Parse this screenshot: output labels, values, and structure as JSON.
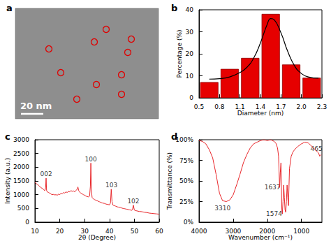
{
  "image_panel": {
    "title": "a",
    "scale_bar": "20 nm"
  },
  "chart_data": [
    {
      "type": "histogram",
      "title": "b",
      "bins": [
        0.5,
        0.8,
        1.1,
        1.4,
        1.7,
        2.0,
        2.3
      ],
      "values": [
        7,
        13,
        18,
        38,
        15,
        9
      ],
      "color": "#e60000",
      "fit": {
        "x": [
          0.65,
          0.8,
          0.95,
          1.1,
          1.2,
          1.3,
          1.4,
          1.5,
          1.55,
          1.6,
          1.7,
          1.8,
          1.9,
          2.0,
          2.1,
          2.25
        ],
        "values": [
          8.5,
          8.7,
          9.5,
          11.5,
          13.8,
          18,
          25,
          33.5,
          36,
          35.5,
          29.5,
          21,
          14.5,
          11,
          9.5,
          8.9
        ],
        "color": "#000000"
      },
      "xlabel": "Diameter (nm)",
      "ylabel": "Percentage (%)",
      "xlim": [
        0.5,
        2.3
      ],
      "xticks": [
        0.5,
        0.8,
        1.1,
        1.4,
        1.7,
        {
          "value": 2,
          "label": "2.0"
        },
        2.3
      ],
      "ylim": [
        0,
        40
      ],
      "yticks": [
        0,
        10,
        20,
        30,
        40
      ],
      "grid": false
    },
    {
      "type": "line",
      "title": "c",
      "x": [
        10,
        10.5,
        11,
        11.5,
        12,
        12.5,
        13,
        13.5,
        14,
        14.3,
        14.5,
        14.7,
        15,
        15.5,
        16,
        16.5,
        17,
        17.5,
        18,
        18.5,
        19,
        19.5,
        20,
        20.5,
        21,
        21.5,
        22,
        22.5,
        23,
        23.5,
        24,
        24.5,
        25,
        25.5,
        26,
        26.5,
        27,
        27.3,
        27.6,
        28,
        28.5,
        29,
        29.5,
        30,
        30.5,
        31,
        31.5,
        32,
        32.3,
        32.5,
        32.7,
        33,
        33.5,
        34,
        34.5,
        35,
        35.5,
        36,
        36.5,
        37,
        37.5,
        38,
        38.5,
        39,
        39.5,
        40,
        40.4,
        40.7,
        41,
        41.4,
        42,
        42.5,
        43,
        43.5,
        44,
        44.5,
        45,
        45.5,
        46,
        46.5,
        47,
        47.5,
        48,
        48.5,
        49,
        49.3,
        49.6,
        50,
        50.5,
        51,
        52,
        53,
        54,
        55,
        56,
        57,
        58,
        59,
        60
      ],
      "values": [
        1450,
        1400,
        1380,
        1330,
        1300,
        1250,
        1230,
        1180,
        1150,
        1250,
        1600,
        1150,
        1100,
        1080,
        1050,
        1020,
        1000,
        1010,
        990,
        1000,
        980,
        1020,
        1000,
        1050,
        1030,
        1080,
        1060,
        1100,
        1080,
        1120,
        1100,
        1150,
        1120,
        1140,
        1100,
        1150,
        1200,
        1280,
        1150,
        1100,
        1050,
        1030,
        1000,
        980,
        950,
        930,
        920,
        950,
        1300,
        2150,
        1200,
        900,
        850,
        820,
        800,
        780,
        760,
        740,
        720,
        700,
        690,
        680,
        660,
        650,
        640,
        630,
        700,
        1200,
        750,
        620,
        600,
        580,
        560,
        550,
        540,
        530,
        510,
        500,
        490,
        480,
        470,
        460,
        450,
        440,
        430,
        480,
        620,
        440,
        420,
        410,
        390,
        380,
        360,
        350,
        330,
        320,
        310,
        300,
        290
      ],
      "color": "#e8262a",
      "annotations": [
        {
          "text": "002",
          "x": 14.5,
          "y": 1750
        },
        {
          "text": "100",
          "x": 32.5,
          "y": 2300
        },
        {
          "text": "103",
          "x": 40.8,
          "y": 1350
        },
        {
          "text": "102",
          "x": 49.6,
          "y": 760
        }
      ],
      "xlabel": "2θ (Degree)",
      "ylabel": "Intensity (a.u.)",
      "xlim": [
        10,
        60
      ],
      "xticks": [
        10,
        20,
        30,
        40,
        50,
        60
      ],
      "ylim": [
        0,
        3000
      ],
      "yticks": [
        0,
        500,
        1000,
        1500,
        2000,
        2500,
        3000
      ],
      "grid": false
    },
    {
      "type": "line",
      "title": "d",
      "x": [
        4000,
        3900,
        3800,
        3700,
        3600,
        3500,
        3400,
        3310,
        3200,
        3100,
        3000,
        2900,
        2800,
        2700,
        2600,
        2500,
        2400,
        2300,
        2200,
        2100,
        2000,
        1900,
        1800,
        1750,
        1700,
        1670,
        1650,
        1637,
        1620,
        1600,
        1590,
        1574,
        1560,
        1540,
        1520,
        1500,
        1480,
        1460,
        1440,
        1420,
        1400,
        1380,
        1350,
        1300,
        1250,
        1200,
        1100,
        1000,
        900,
        800,
        700,
        600,
        500,
        465,
        420
      ],
      "values": [
        99,
        98,
        95,
        88,
        78,
        58,
        35,
        26,
        25,
        27,
        33,
        45,
        58,
        72,
        82,
        90,
        95,
        97,
        99,
        100,
        99,
        100,
        98,
        96,
        90,
        80,
        55,
        42,
        60,
        72,
        50,
        15,
        10,
        25,
        45,
        30,
        15,
        12,
        25,
        45,
        30,
        20,
        65,
        80,
        85,
        88,
        92,
        95,
        97,
        96,
        92,
        88,
        84,
        80,
        82
      ],
      "color": "#e8262a",
      "annotations": [
        {
          "text": "3310",
          "x": 3310,
          "y": 17
        },
        {
          "text": "1637",
          "x": 1850,
          "y": 42
        },
        {
          "text": "1574",
          "x": 1800,
          "y": 10
        },
        {
          "text": "465",
          "x": 560,
          "y": 89
        }
      ],
      "xlabel": "Wavenumber (cm⁻¹)",
      "ylabel": "Transmittance (%)",
      "xlim": [
        4000,
        400
      ],
      "xticks": [
        4000,
        3000,
        2000,
        1000
      ],
      "ylim": [
        0,
        100
      ],
      "yticks": [
        {
          "value": 0,
          "label": "0%"
        },
        {
          "value": 25,
          "label": "25%"
        },
        {
          "value": 50,
          "label": "50%"
        },
        {
          "value": 75,
          "label": "75%"
        },
        {
          "value": 100,
          "label": "100%"
        }
      ],
      "grid": false
    }
  ]
}
